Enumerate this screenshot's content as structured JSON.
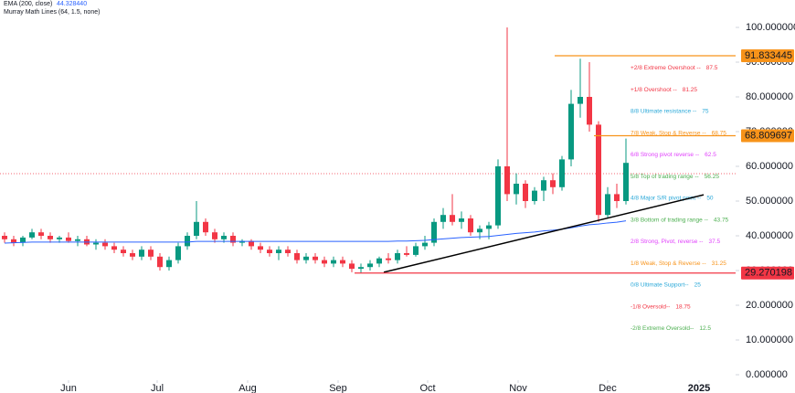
{
  "chart_data": {
    "type": "candlestick",
    "legend": [
      {
        "name": "EMA (200, close)",
        "value": "44.328440"
      },
      {
        "name": "Murray Math Lines (64, 1.5, none)"
      }
    ],
    "xlim": [
      0,
      80.5
    ],
    "xticks": [
      {
        "value": 7.5,
        "label": "Jun"
      },
      {
        "value": 17.2,
        "label": "Jul"
      },
      {
        "value": 27.1,
        "label": "Aug"
      },
      {
        "value": 37,
        "label": "Sep"
      },
      {
        "value": 46.8,
        "label": "Oct"
      },
      {
        "value": 56.7,
        "label": "Nov"
      },
      {
        "value": 66.5,
        "label": "Dec"
      },
      {
        "value": 76.5,
        "label": "2025"
      }
    ],
    "ylim": [
      0,
      100
    ],
    "yticks": [
      {
        "value": 0,
        "label": "0.000000"
      },
      {
        "value": 10,
        "label": "10.000000"
      },
      {
        "value": 20,
        "label": "20.000000"
      },
      {
        "value": 30,
        "label": "30.000000"
      },
      {
        "value": 40,
        "label": "40.000000"
      },
      {
        "value": 50,
        "label": "50.000000"
      },
      {
        "value": 60,
        "label": "60.000000"
      },
      {
        "value": 70,
        "label": "70.000000"
      },
      {
        "value": 80,
        "label": "80.000000"
      },
      {
        "value": 90,
        "label": "90.000000"
      },
      {
        "value": 100,
        "label": "100.000000"
      }
    ],
    "up_color": "#089981",
    "down_color": "#f23645",
    "open": [
      40,
      39,
      38,
      39.5,
      41,
      40,
      39,
      39.5,
      38.5,
      39,
      37.5,
      38,
      37,
      36,
      35,
      34,
      36,
      34,
      31,
      33,
      37,
      40,
      44,
      41,
      39,
      40,
      38,
      38.5,
      37,
      36,
      35,
      36,
      35,
      33,
      34,
      33,
      32,
      33,
      32,
      30.5,
      31,
      32,
      33.5,
      33,
      35,
      34.5,
      37,
      38,
      44,
      46,
      44,
      45,
      41,
      42,
      43,
      60,
      52,
      55,
      50,
      53,
      56,
      54,
      62,
      78,
      80,
      72,
      46,
      52,
      50
    ],
    "high": [
      41,
      40,
      40,
      42,
      42,
      41,
      40,
      41,
      40,
      40,
      39,
      39,
      38,
      37,
      36,
      37,
      37,
      35,
      34,
      38,
      41,
      50,
      45,
      42,
      41,
      41,
      39,
      39,
      38,
      37,
      37,
      37,
      36,
      35,
      35,
      34,
      34,
      34,
      33,
      32,
      33,
      34,
      35,
      36,
      37,
      38,
      40,
      45,
      48,
      52,
      47,
      46,
      43,
      44,
      62,
      100,
      58,
      56,
      54,
      57,
      58,
      63,
      82,
      91,
      90,
      73,
      54,
      55,
      68
    ],
    "low": [
      38,
      37,
      37,
      39,
      39,
      38,
      38,
      38,
      37,
      37,
      36,
      36,
      35,
      34,
      33,
      33,
      33,
      30,
      30,
      32,
      36,
      39,
      40,
      38,
      38,
      37,
      37,
      36,
      35,
      34,
      33,
      34,
      32,
      32,
      32,
      31,
      31,
      31,
      29.5,
      29.3,
      30,
      31,
      32,
      32,
      34,
      34,
      36,
      37,
      42,
      43,
      42,
      40,
      39,
      39,
      42,
      50,
      49,
      48,
      49,
      50,
      52,
      53,
      60,
      74,
      70,
      44,
      45,
      48,
      49
    ],
    "close": [
      39,
      38,
      39.5,
      41,
      40,
      39,
      39.5,
      38.5,
      39,
      37.5,
      38,
      37,
      36,
      35,
      34,
      36,
      34,
      31,
      33,
      37,
      40,
      44,
      41,
      39,
      40,
      38,
      38.5,
      37,
      36,
      35,
      36,
      35,
      33,
      34,
      33,
      32,
      33,
      32,
      30.5,
      31,
      32,
      33.5,
      33,
      35,
      34.5,
      37,
      38,
      44,
      46,
      44,
      45,
      41,
      42,
      43,
      60,
      52,
      55,
      50,
      53,
      56,
      54,
      62,
      78,
      80,
      72,
      46,
      52,
      50,
      61
    ],
    "ema": {
      "color": "#2962ff",
      "values": [
        37.9,
        38,
        38.1,
        38.2,
        38.2,
        38.2,
        38.2,
        38.2,
        38.2,
        38.2,
        38.2,
        38.2,
        38.2,
        38.2,
        38.2,
        38.2,
        38.2,
        38.2,
        38.2,
        38.2,
        38.2,
        38.4,
        38.4,
        38.4,
        38.4,
        38.4,
        38.4,
        38.4,
        38.4,
        38.4,
        38.4,
        38.4,
        38.4,
        38.4,
        38.4,
        38.4,
        38.4,
        38.4,
        38.4,
        38.4,
        38.4,
        38.4,
        38.4,
        38.5,
        38.5,
        38.6,
        38.7,
        38.9,
        39.1,
        39.3,
        39.5,
        39.6,
        39.7,
        39.8,
        40.1,
        40.4,
        40.7,
        40.9,
        41.1,
        41.4,
        41.6,
        41.9,
        42.3,
        42.8,
        43.2,
        43.4,
        43.7,
        43.9,
        44.3
      ]
    },
    "murray_levels": [
      {
        "name": "+2/8 Extreme Overshoot --",
        "value": 87.5,
        "color": "#f23645"
      },
      {
        "name": "+1/8 Overshoot --",
        "value": 81.25,
        "color": "#f23645"
      },
      {
        "name": "8/8 Ultimate resistance --",
        "value": 75,
        "color": "#2aa8d8"
      },
      {
        "name": "7/8 Weak, Stop & Reverse --",
        "value": 68.75,
        "color": "#f7931a"
      },
      {
        "name": "6/8 Strong pivot reverse --",
        "value": 62.5,
        "color": "#e040fb"
      },
      {
        "name": "5/8 Top of trading range --",
        "value": 56.25,
        "color": "#4caf50"
      },
      {
        "name": "4/8 Major S/R pivot point --",
        "value": 50,
        "color": "#2aa8d8"
      },
      {
        "name": "3/8 Bottom of trading range --",
        "value": 43.75,
        "color": "#4caf50"
      },
      {
        "name": "2/8 Strong, Pivot, reverse --",
        "value": 37.5,
        "color": "#e040fb"
      },
      {
        "name": "1/8 Weak, Stop & Reverse --",
        "value": 31.25,
        "color": "#f7931a"
      },
      {
        "name": "0/8 Ultimate Support--",
        "value": 25,
        "color": "#2aa8d8"
      },
      {
        "name": "-1/8 Oversold--",
        "value": 18.75,
        "color": "#f23645"
      },
      {
        "name": "-2/8 Extreme Oversold--",
        "value": 12.5,
        "color": "#4caf50"
      }
    ],
    "hlines": [
      {
        "value": 91.833445,
        "from": 60.7,
        "color": "#f7931a"
      },
      {
        "value": 68.809697,
        "from": 65,
        "color": "#f7931a"
      },
      {
        "value": 29.270198,
        "from": 38.8,
        "color": "#f23645"
      }
    ],
    "price_line": {
      "value": 57.9,
      "color": "#f23645"
    },
    "trend_line": {
      "x": [
        42,
        77
      ],
      "y": [
        29.5,
        51.8
      ],
      "color": "#000000"
    }
  }
}
